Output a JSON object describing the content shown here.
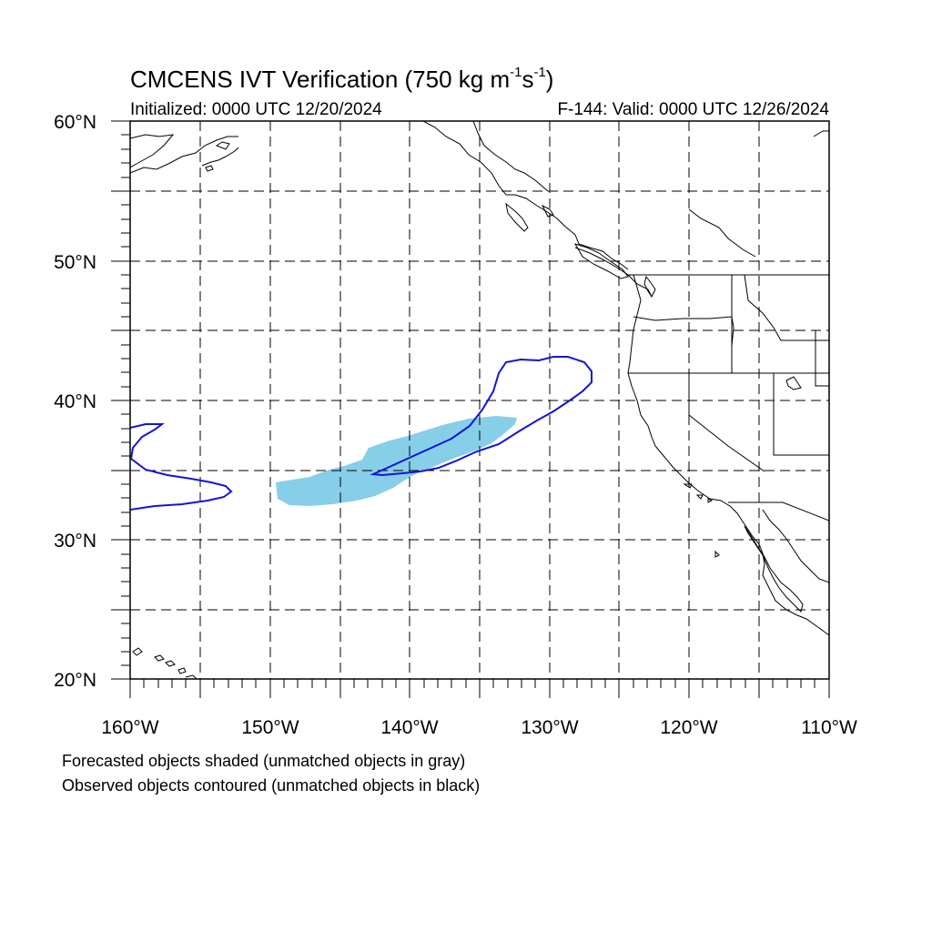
{
  "title": {
    "prefix": "CMCENS IVT Verification (750 kg m",
    "exp1": "-1",
    "mid": "s",
    "exp2": "-1",
    "suffix": ")"
  },
  "initialized": "Initialized: 0000 UTC 12/20/2024",
  "valid": "F-144: Valid: 0000 UTC 12/26/2024",
  "footnotes": [
    "Forecasted objects shaded (unmatched objects in gray)",
    "Observed objects contoured (unmatched objects in black)"
  ],
  "lat_labels": [
    "60°N",
    "50°N",
    "40°N",
    "30°N",
    "20°N"
  ],
  "lon_labels": [
    "160°W",
    "150°W",
    "140°W",
    "130°W",
    "120°W",
    "110°W"
  ],
  "map": {
    "lat_range": [
      20,
      60
    ],
    "lon_range": [
      -160,
      -110
    ],
    "grid_interval_deg": 5,
    "projection": "cylindrical equidistant"
  },
  "colors": {
    "forecast_fill": "#87CEE8",
    "observed_contour": "#1414D2",
    "coastline": "#000000",
    "grid": "#000000"
  },
  "legend_items": {
    "forecast": "forecast-object-shaded",
    "observed": "observed-object-contour"
  }
}
